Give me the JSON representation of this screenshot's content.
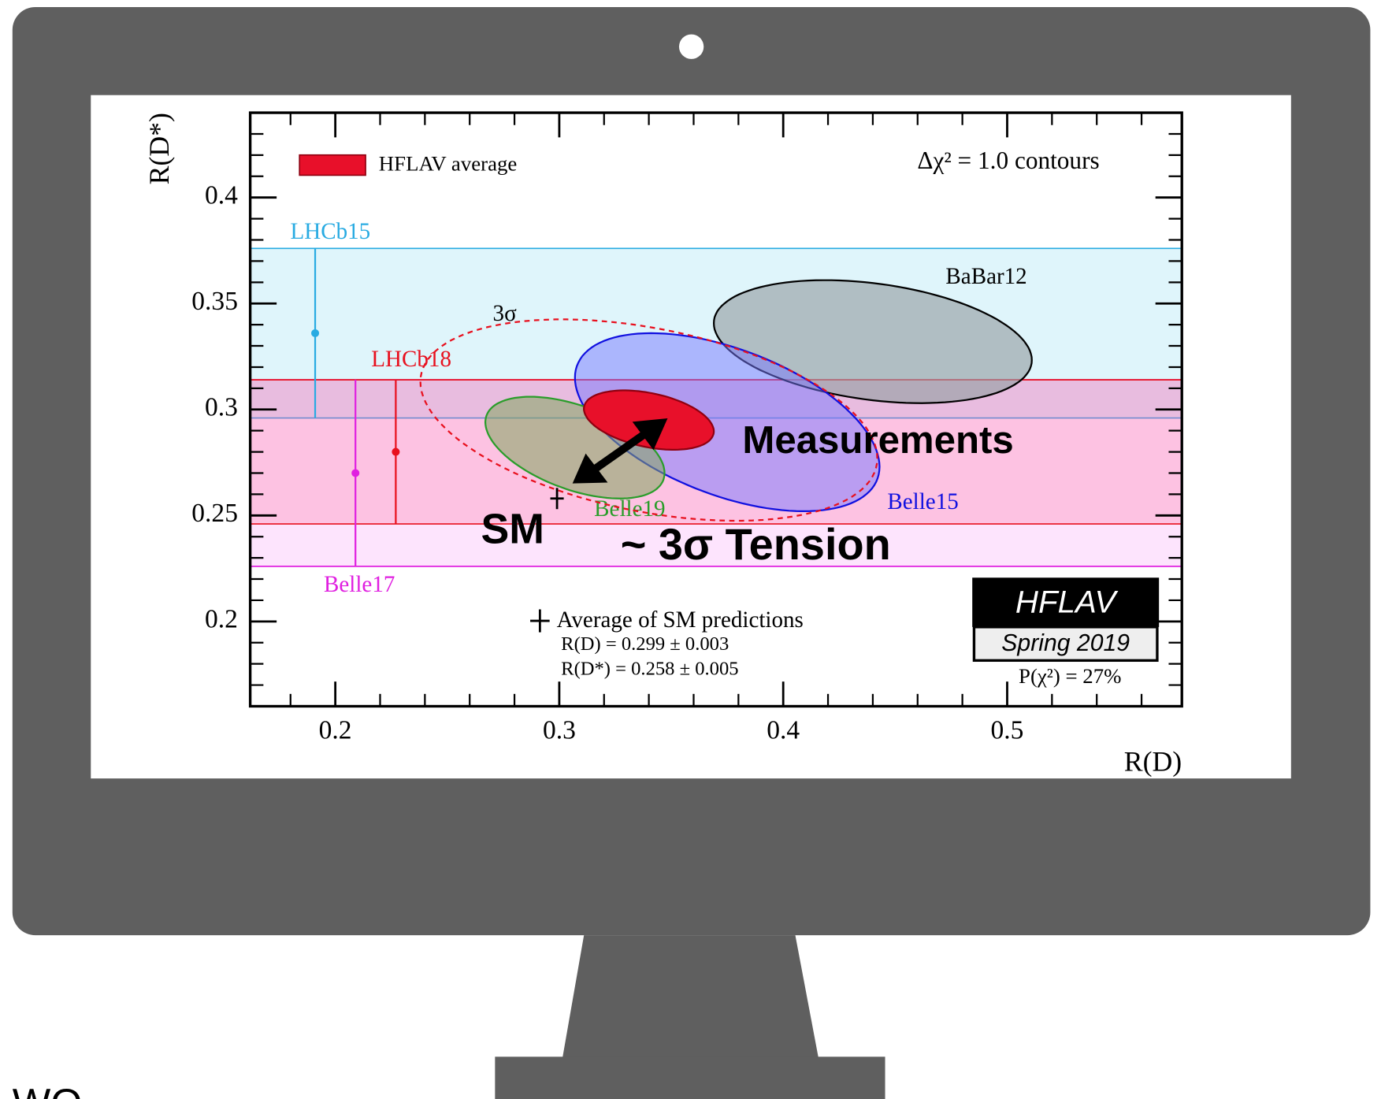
{
  "chart_data": {
    "type": "contour",
    "xlabel": "R(D)",
    "ylabel": "R(D*)",
    "xlim": [
      0.162,
      0.578
    ],
    "ylim": [
      0.16,
      0.44
    ],
    "xticks": [
      {
        "value": 0.2,
        "label": "0.2"
      },
      {
        "value": 0.3,
        "label": "0.3"
      },
      {
        "value": 0.4,
        "label": "0.4"
      },
      {
        "value": 0.5,
        "label": "0.5"
      }
    ],
    "yticks": [
      {
        "value": 0.2,
        "label": "0.2"
      },
      {
        "value": 0.25,
        "label": "0.25"
      },
      {
        "value": 0.3,
        "label": "0.3"
      },
      {
        "value": 0.35,
        "label": "0.35"
      },
      {
        "value": 0.4,
        "label": "0.4"
      }
    ],
    "xminorticks": [
      0.18,
      0.22,
      0.24,
      0.26,
      0.28,
      0.32,
      0.34,
      0.36,
      0.38,
      0.42,
      0.44,
      0.46,
      0.48,
      0.52,
      0.54,
      0.56
    ],
    "yminorticks": [
      0.17,
      0.18,
      0.19,
      0.21,
      0.22,
      0.23,
      0.24,
      0.26,
      0.27,
      0.28,
      0.29,
      0.31,
      0.32,
      0.33,
      0.34,
      0.36,
      0.37,
      0.38,
      0.39,
      0.41,
      0.42,
      0.43
    ],
    "contour_label": "Δχ² = 1.0 contours",
    "bands": [
      {
        "name": "LHCb15",
        "color": "#29abe2",
        "x": 0.191,
        "y": 0.336,
        "err": 0.04
      },
      {
        "name": "Belle17",
        "color": "#e020e0",
        "x": 0.209,
        "y": 0.27,
        "err": 0.044
      },
      {
        "name": "LHCb18",
        "color": "#e8101e",
        "x": 0.227,
        "y": 0.28,
        "err": 0.034
      }
    ],
    "ellipses": [
      {
        "name": "BaBar12",
        "color": "#000000",
        "fill": "rgba(150,160,165,0.65)",
        "x": 0.44,
        "y": 0.332,
        "sx": 0.071,
        "sy": 0.029,
        "rho": -0.3
      },
      {
        "name": "Belle15",
        "color": "#1010e0",
        "fill": "rgba(120,120,255,0.5)",
        "x": 0.375,
        "y": 0.294,
        "sx": 0.068,
        "sy": 0.042,
        "rho": -0.5
      },
      {
        "name": "Belle19",
        "color": "#2a9d2a",
        "fill": "rgba(130,165,95,0.55)",
        "x": 0.307,
        "y": 0.282,
        "sx": 0.04,
        "sy": 0.024,
        "rho": -0.5
      },
      {
        "name": "HFLAV average",
        "color": "#900010",
        "fill": "#e8102a",
        "x": 0.34,
        "y": 0.295,
        "sx": 0.029,
        "sy": 0.014,
        "rho": -0.38
      },
      {
        "name": "3σ",
        "color": "#e8101e",
        "fill": "none",
        "dashed": true,
        "x": 0.34,
        "y": 0.295,
        "sx": 0.102,
        "sy": 0.0475,
        "rho": -0.38
      }
    ],
    "sm": {
      "x": 0.299,
      "xerr": 0.003,
      "y": 0.258,
      "yerr": 0.005,
      "title": "Average of SM predictions",
      "lines": [
        "R(D) = 0.299 ± 0.003",
        "R(D*) = 0.258 ± 0.005"
      ]
    },
    "annotations": [
      "Measurements",
      "SM",
      "~ 3σ Tension"
    ],
    "logo": {
      "title": "HFLAV",
      "subtitle": "Spring 2019"
    },
    "pvalue": "P(χ²) = 27%"
  },
  "footer_text": "WO"
}
